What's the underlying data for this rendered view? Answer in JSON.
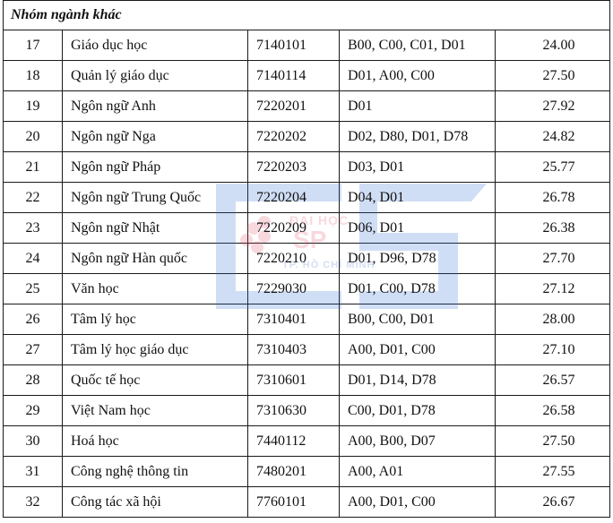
{
  "group_title": "Nhóm ngành khác",
  "watermark": {
    "line1": "ĐẠI HỌC",
    "line2": "SP",
    "line3": "TP. HỒ CHÍ MINH",
    "colors": {
      "blue": "#2f6fd6",
      "red": "#e0506a"
    }
  },
  "rows": [
    {
      "stt": "17",
      "name": "Giáo dục học",
      "code": "7140101",
      "combos": "B00, C00, C01, D01",
      "score": "24.00"
    },
    {
      "stt": "18",
      "name": "Quản lý giáo dục",
      "code": "7140114",
      "combos": "D01, A00, C00",
      "score": "27.50"
    },
    {
      "stt": "19",
      "name": "Ngôn ngữ Anh",
      "code": "7220201",
      "combos": "D01",
      "score": "27.92"
    },
    {
      "stt": "20",
      "name": "Ngôn ngữ Nga",
      "code": "7220202",
      "combos": "D02, D80, D01, D78",
      "score": "24.82"
    },
    {
      "stt": "21",
      "name": "Ngôn ngữ Pháp",
      "code": "7220203",
      "combos": "D03, D01",
      "score": "25.77"
    },
    {
      "stt": "22",
      "name": "Ngôn ngữ Trung Quốc",
      "code": "7220204",
      "combos": "D04, D01",
      "score": "26.78"
    },
    {
      "stt": "23",
      "name": "Ngôn ngữ Nhật",
      "code": "7220209",
      "combos": "D06, D01",
      "score": "26.38"
    },
    {
      "stt": "24",
      "name": "Ngôn ngữ Hàn quốc",
      "code": "7220210",
      "combos": "D01, D96, D78",
      "score": "27.70"
    },
    {
      "stt": "25",
      "name": "Văn học",
      "code": "7229030",
      "combos": "D01, C00, D78",
      "score": "27.12"
    },
    {
      "stt": "26",
      "name": "Tâm lý học",
      "code": "7310401",
      "combos": "B00, C00, D01",
      "score": "28.00"
    },
    {
      "stt": "27",
      "name": "Tâm lý học giáo dục",
      "code": "7310403",
      "combos": "A00, D01, C00",
      "score": "27.10"
    },
    {
      "stt": "28",
      "name": "Quốc tế học",
      "code": "7310601",
      "combos": "D01, D14, D78",
      "score": "26.57"
    },
    {
      "stt": "29",
      "name": "Việt Nam học",
      "code": "7310630",
      "combos": "C00, D01, D78",
      "score": "26.58"
    },
    {
      "stt": "30",
      "name": "Hoá học",
      "code": "7440112",
      "combos": "A00, B00, D07",
      "score": "27.50"
    },
    {
      "stt": "31",
      "name": "Công nghệ thông tin",
      "code": "7480201",
      "combos": "A00, A01",
      "score": "27.55"
    },
    {
      "stt": "32",
      "name": "Công tác xã hội",
      "code": "7760101",
      "combos": "A00, D01, C00",
      "score": "26.67"
    }
  ]
}
